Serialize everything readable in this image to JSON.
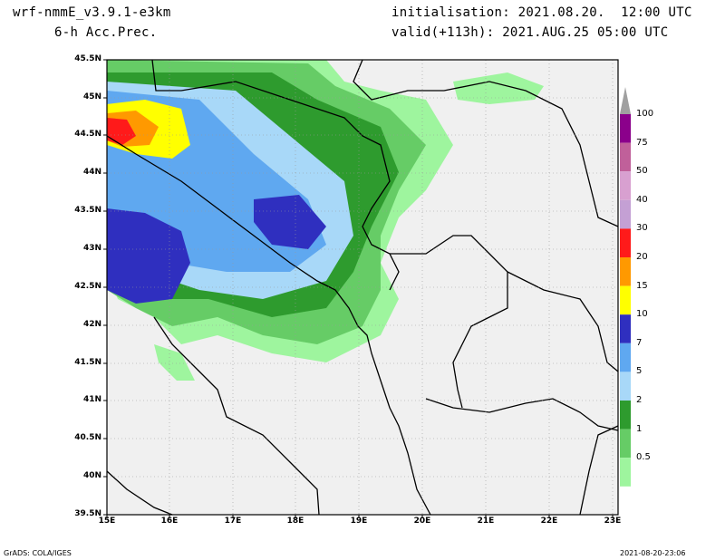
{
  "header": {
    "model": "wrf-nmmE_v3.9.1-e3km",
    "field": "6-h Acc.Prec.",
    "init": "initialisation: 2021.08.20.  12:00 UTC",
    "valid": "valid(+113h): 2021.AUG.25 05:00 UTC"
  },
  "footer": {
    "left": "GrADS: COLA/IGES",
    "right": "2021-08-20-23:06"
  },
  "axes": {
    "lat_labels": [
      "45.5N",
      "45N",
      "44.5N",
      "44N",
      "43.5N",
      "43N",
      "42.5N",
      "42N",
      "41.5N",
      "41N",
      "40.5N",
      "40N",
      "39.5N"
    ],
    "lon_labels": [
      "15E",
      "16E",
      "17E",
      "18E",
      "19E",
      "20E",
      "21E",
      "22E",
      "23E"
    ]
  },
  "colorbar": {
    "labels": [
      "100",
      "75",
      "50",
      "40",
      "30",
      "20",
      "15",
      "10",
      "7",
      "5",
      "2",
      "1",
      "0.5"
    ],
    "colors": [
      "#8b008b",
      "#c0609a",
      "#d8a0d0",
      "#c4a0d4",
      "#ff1a1a",
      "#ff9900",
      "#ffff00",
      "#2f2fbf",
      "#5fa8f0",
      "#a8d8f8",
      "#2e9b2e",
      "#66cc66",
      "#9ef59e"
    ]
  },
  "colors": {
    "land": "#f0f0f0",
    "sea": "#f0f0f0",
    "border": "#000000"
  }
}
